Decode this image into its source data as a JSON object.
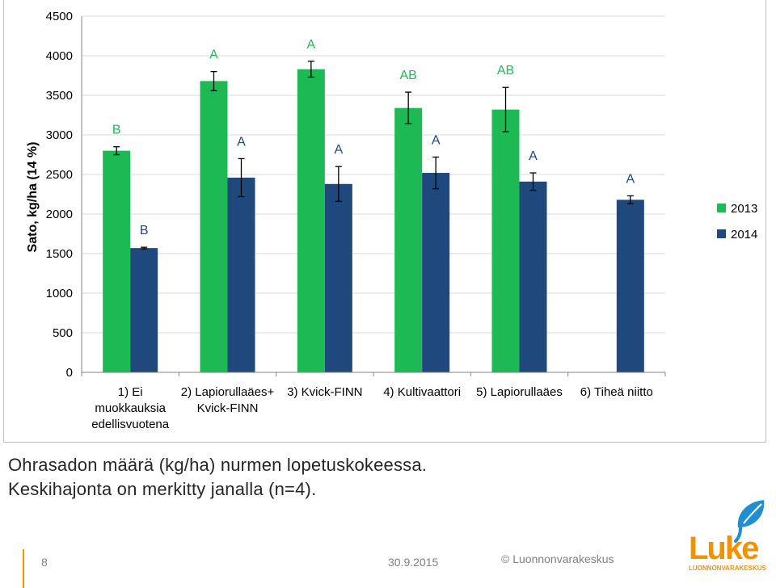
{
  "chart_data": {
    "type": "bar",
    "title": "",
    "xlabel": "",
    "ylabel": "Sato, kg/ha (14 %)",
    "ylim": [
      0,
      4500
    ],
    "yticks": [
      0,
      500,
      1000,
      1500,
      2000,
      2500,
      3000,
      3500,
      4000,
      4500
    ],
    "grid": true,
    "legend_position": "right",
    "categories": [
      [
        "1) Ei",
        "muokkauksia",
        "edellisvuotena"
      ],
      [
        "2) Lapiorullaäes+",
        "Kvick-FINN"
      ],
      [
        "3) Kvick-FINN"
      ],
      [
        "4) Kultivaattori"
      ],
      [
        "5) Lapiorullaäes"
      ],
      [
        "6) Tiheä niitto"
      ]
    ],
    "series": [
      {
        "name": "2013",
        "color": "#1db954",
        "values": [
          2800,
          3680,
          3830,
          3340,
          3320,
          null
        ],
        "errors": [
          50,
          120,
          100,
          200,
          280,
          null
        ],
        "letters": [
          "B",
          "A",
          "A",
          "AB",
          "AB",
          ""
        ]
      },
      {
        "name": "2014",
        "color": "#1f497d",
        "values": [
          1570,
          2460,
          2380,
          2520,
          2410,
          2180
        ],
        "errors": [
          10,
          240,
          220,
          200,
          110,
          50
        ],
        "letters": [
          "B",
          "A",
          "A",
          "A",
          "A",
          "A"
        ]
      }
    ]
  },
  "caption": {
    "line1": "Ohrasadon määrä (kg/ha) nurmen lopetuskokeessa.",
    "line2": "Keskihajonta on merkitty janalla (n=4)."
  },
  "footer": {
    "page_number": "8",
    "date": "30.9.2015",
    "copyright": "© Luonnonvarakeskus"
  },
  "logo": {
    "name": "Luke",
    "subtitle": "LUONNONVARAKESKUS",
    "color": "#f39200",
    "leaf_color": "#1f8fd1"
  }
}
